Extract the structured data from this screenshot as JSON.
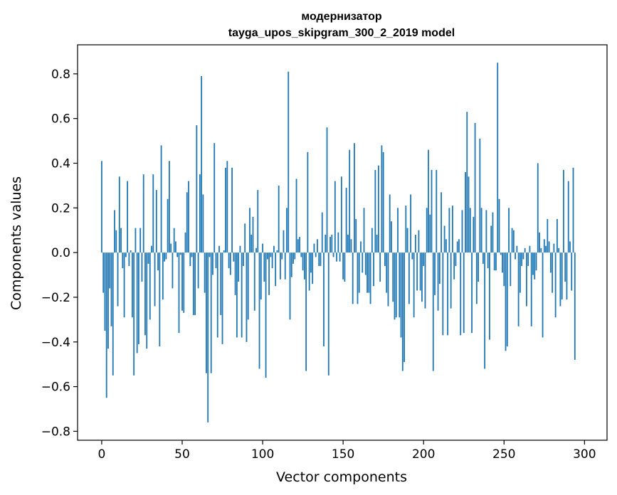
{
  "chart_data": {
    "type": "bar",
    "title_line1": "модернизатор",
    "title_line2": "tayga_upos_skipgram_300_2_2019 model",
    "xlabel": "Vector components",
    "ylabel": "Components values",
    "xlim": [
      -15,
      314
    ],
    "ylim": [
      -0.84,
      0.93
    ],
    "xticks": [
      0,
      50,
      100,
      150,
      200,
      250,
      300
    ],
    "xtick_labels": [
      "0",
      "50",
      "100",
      "150",
      "200",
      "250",
      "300"
    ],
    "yticks": [
      -0.8,
      -0.6,
      -0.4,
      -0.2,
      0.0,
      0.2,
      0.4,
      0.6,
      0.8
    ],
    "ytick_labels": [
      "−0.8",
      "−0.6",
      "−0.4",
      "−0.2",
      "0.0",
      "0.2",
      "0.4",
      "0.6",
      "0.8"
    ],
    "grid": false,
    "bar_color": "#1f77b4",
    "values": [
      0.41,
      -0.18,
      -0.35,
      -0.65,
      -0.43,
      -0.16,
      -0.33,
      -0.55,
      0.19,
      0.1,
      -0.24,
      0.34,
      0.11,
      -0.07,
      -0.29,
      -0.02,
      0.32,
      -0.06,
      0.01,
      -0.29,
      -0.55,
      0.11,
      -0.45,
      -0.41,
      0.11,
      -0.13,
      0.35,
      -0.37,
      -0.43,
      -0.05,
      -0.3,
      0.03,
      0.35,
      -0.24,
      0.28,
      -0.08,
      -0.42,
      0.48,
      -0.21,
      -0.04,
      -0.03,
      0.24,
      0.41,
      0.04,
      -0.16,
      0.11,
      0.05,
      -0.02,
      -0.36,
      -0.01,
      -0.26,
      -0.27,
      0.09,
      0.27,
      0.32,
      -0.06,
      -0.02,
      -0.28,
      -0.28,
      0.57,
      -0.16,
      0.35,
      0.79,
      0.26,
      -0.18,
      -0.54,
      -0.76,
      -0.02,
      -0.54,
      -0.1,
      0.49,
      -0.07,
      -0.38,
      0.03,
      -0.28,
      -0.41,
      0.01,
      0.38,
      0.41,
      -0.07,
      -0.1,
      0.38,
      -0.04,
      -0.19,
      -0.38,
      -0.13,
      0.03,
      -0.38,
      -0.06,
      0.13,
      -0.4,
      -0.3,
      0.2,
      0.08,
      0.16,
      -0.26,
      0.02,
      0.28,
      -0.52,
      -0.21,
      0.04,
      -0.13,
      -0.56,
      -0.03,
      -0.19,
      -0.02,
      -0.07,
      0.03,
      -0.15,
      0.01,
      0.3,
      -0.12,
      -0.03,
      0.1,
      -0.12,
      0.2,
      0.81,
      -0.3,
      -0.11,
      -0.05,
      -0.03,
      0.33,
      0.06,
      0.07,
      -0.02,
      -0.08,
      -0.12,
      -0.53,
      0.45,
      -0.17,
      -0.09,
      -0.14,
      0.04,
      -0.02,
      0.06,
      -0.06,
      -0.06,
      0.18,
      -0.42,
      0.08,
      0.56,
      -0.55,
      0.07,
      0.08,
      -0.02,
      0.32,
      -0.04,
      0.09,
      -0.04,
      0.34,
      -0.12,
      -0.13,
      0.29,
      0.08,
      0.46,
      0.06,
      -0.23,
      0.49,
      0.15,
      -0.23,
      -0.18,
      0.05,
      -0.09,
      0.2,
      -0.1,
      -0.18,
      -0.18,
      -0.23,
      0.11,
      -0.15,
      0.37,
      0.08,
      0.39,
      -0.13,
      0.48,
      0.45,
      -0.06,
      -0.18,
      -0.24,
      0.26,
      0.14,
      -0.22,
      -0.3,
      -0.29,
      0.2,
      -0.29,
      -0.38,
      -0.53,
      -0.49,
      0.21,
      0.11,
      -0.23,
      0.26,
      -0.03,
      -0.29,
      0.08,
      -0.17,
      0.1,
      -0.17,
      -0.22,
      -0.06,
      -0.25,
      0.2,
      0.46,
      0.17,
      0.37,
      -0.53,
      -0.19,
      0.37,
      -0.26,
      -0.14,
      0.27,
      -0.37,
      0.12,
      0.06,
      -0.37,
      0.2,
      -0.25,
      0.21,
      -0.12,
      -0.06,
      0.05,
      0.06,
      -0.37,
      0.19,
      -0.36,
      0.36,
      0.63,
      0.34,
      0.2,
      -0.36,
      0.16,
      0.58,
      -0.23,
      -0.13,
      0.51,
      0.2,
      -0.05,
      -0.52,
      0.19,
      -0.07,
      -0.39,
      0.12,
      0.18,
      -0.08,
      -0.08,
      0.85,
      0.24,
      -0.01,
      -0.09,
      -0.15,
      -0.44,
      -0.42,
      0.2,
      -0.15,
      0.11,
      0.1,
      -0.03,
      0.03,
      -0.33,
      -0.18,
      -0.06,
      -0.03,
      0.02,
      -0.24,
      -0.06,
      0.03,
      -0.33,
      -0.1,
      -0.12,
      -0.08,
      0.4,
      0.09,
      0.02,
      -0.38,
      0.06,
      0.03,
      0.15,
      0.05,
      -0.09,
      -0.18,
      0.04,
      -0.29,
      0.15,
      0.02,
      -0.24,
      -0.21,
      0.37,
      -0.13,
      -0.21,
      0.32,
      0.05,
      -0.17,
      0.38,
      -0.48
    ]
  }
}
